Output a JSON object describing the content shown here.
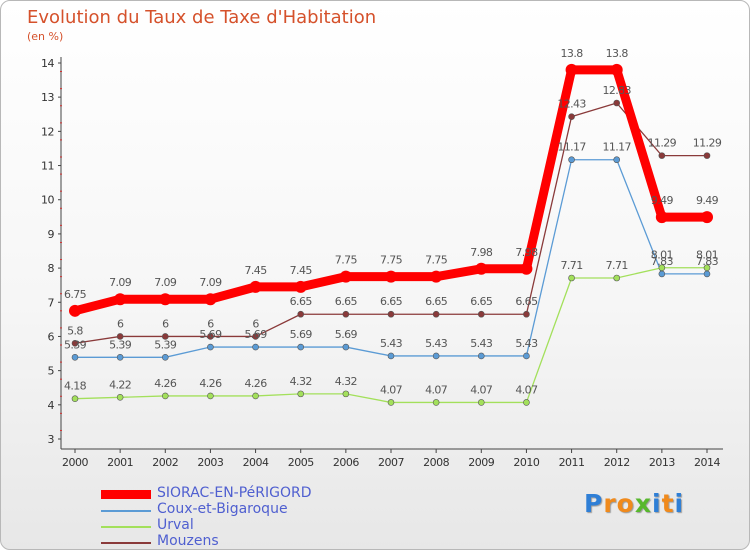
{
  "chart_data": {
    "type": "line",
    "title": "Evolution du Taux de Taxe d'Habitation",
    "ylabel": "(en %)",
    "xlabel": "",
    "ylim": [
      3,
      14
    ],
    "yticks": [
      "3",
      "4",
      "5",
      "6",
      "7",
      "8",
      "9",
      "10",
      "11",
      "12",
      "13",
      "14"
    ],
    "categories": [
      "2000",
      "2001",
      "2002",
      "2003",
      "2004",
      "2005",
      "2006",
      "2007",
      "2008",
      "2009",
      "2010",
      "2011",
      "2012",
      "2013",
      "2014"
    ],
    "grid": false,
    "legend_position": "bottom-left",
    "series": [
      {
        "name": "SIORAC-EN-PéRIGORD",
        "color": "#ff0000",
        "values": [
          6.75,
          7.09,
          7.09,
          7.09,
          7.45,
          7.45,
          7.75,
          7.75,
          7.75,
          7.98,
          7.98,
          13.8,
          13.8,
          9.49,
          9.49
        ],
        "labels": [
          "6.75",
          "7.09",
          "7.09",
          "7.09",
          "7.45",
          "7.45",
          "7.75",
          "7.75",
          "7.75",
          "7.98",
          "7.98",
          "13.8",
          "13.8",
          "9.49",
          "9.49"
        ]
      },
      {
        "name": "Coux-et-Bigaroque",
        "color": "#5b9bd5",
        "values": [
          5.39,
          5.39,
          5.39,
          5.69,
          5.69,
          5.69,
          5.69,
          5.43,
          5.43,
          5.43,
          5.43,
          11.17,
          11.17,
          7.83,
          7.83
        ],
        "labels": [
          "5.39",
          "5.39",
          "5.39",
          "5.69",
          "5.69",
          "5.69",
          "5.69",
          "5.43",
          "5.43",
          "5.43",
          "5.43",
          "11.17",
          "11.17",
          "7.83",
          "7.83"
        ]
      },
      {
        "name": "Urval",
        "color": "#a3e05b",
        "values": [
          4.18,
          4.22,
          4.26,
          4.26,
          4.26,
          4.32,
          4.32,
          4.07,
          4.07,
          4.07,
          4.07,
          7.71,
          7.71,
          8.01,
          8.01
        ],
        "labels": [
          "4.18",
          "4.22",
          "4.26",
          "4.26",
          "4.26",
          "4.32",
          "4.32",
          "4.07",
          "4.07",
          "4.07",
          "4.07",
          "7.71",
          "7.71",
          "8.01",
          "8.01"
        ]
      },
      {
        "name": "Mouzens",
        "color": "#8a3a3a",
        "values": [
          5.8,
          6,
          6,
          6,
          6,
          6.65,
          6.65,
          6.65,
          6.65,
          6.65,
          6.65,
          12.43,
          12.83,
          11.29,
          11.29
        ],
        "labels": [
          "5.8",
          "6",
          "6",
          "6",
          "6",
          "6.65",
          "6.65",
          "6.65",
          "6.65",
          "6.65",
          "6.65",
          "12.43",
          "12.83",
          "11.29",
          "11.29"
        ]
      }
    ]
  },
  "brand": {
    "letters": [
      "P",
      "r",
      "o",
      "x",
      "i",
      "t",
      "i"
    ],
    "colors": [
      "#2f7fd6",
      "#f08a1c",
      "#f08a1c",
      "#58b82d",
      "#2f7fd6",
      "#f08a1c",
      "#2f7fd6"
    ]
  }
}
